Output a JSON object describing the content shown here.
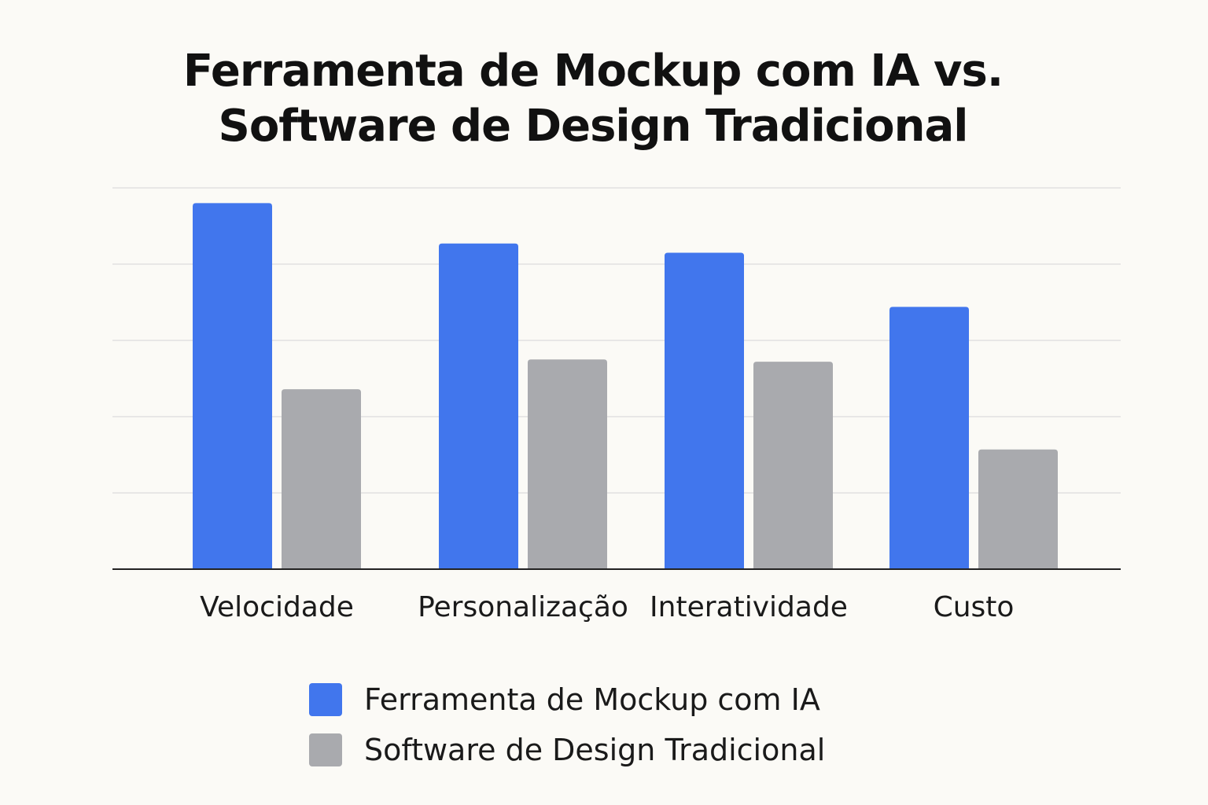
{
  "chart_data": {
    "type": "bar",
    "title": "Ferramenta de Mockup com IA vs. Software de Design Tradicional",
    "title_lines": [
      "Ferramenta de Mockup com IA vs.",
      "Software de Design Tradicional"
    ],
    "categories": [
      "Velocidade",
      "Personalização",
      "Interatividade",
      "Custo"
    ],
    "series": [
      {
        "name": "Ferramenta de Mockup com IA",
        "color": "#4176ED",
        "values": [
          4.8,
          4.27,
          4.15,
          3.44
        ]
      },
      {
        "name": "Software de Design Tradicional",
        "color": "#A9AAAE",
        "values": [
          2.36,
          2.75,
          2.72,
          1.57
        ]
      }
    ],
    "xlabel": "",
    "ylabel": "",
    "ylim": [
      0,
      5
    ],
    "grid": true,
    "y_tick_labels_shown": false,
    "legend_position": "bottom"
  }
}
